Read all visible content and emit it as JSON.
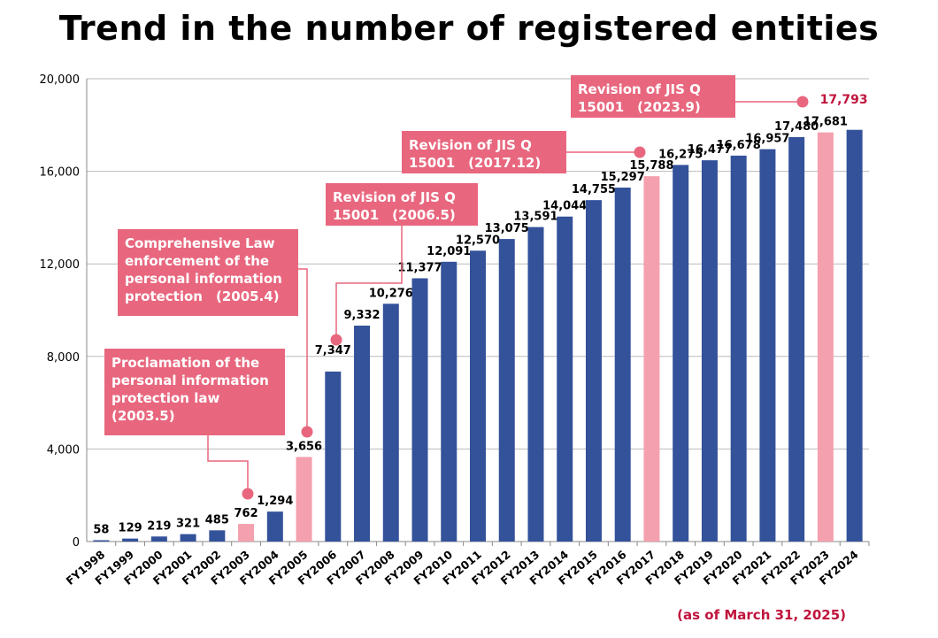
{
  "chart_data": {
    "type": "bar",
    "title": "Trend in the number of registered entities",
    "categories": [
      "FY1998",
      "FY1999",
      "FY2000",
      "FY2001",
      "FY2002",
      "FY2003",
      "FY2004",
      "FY2005",
      "FY2006",
      "FY2007",
      "FY2008",
      "FY2009",
      "FY2010",
      "FY2011",
      "FY2012",
      "FY2013",
      "FY2014",
      "FY2015",
      "FY2016",
      "FY2017",
      "FY2018",
      "FY2019",
      "FY2020",
      "FY2021",
      "FY2022",
      "FY2023",
      "FY2024"
    ],
    "values": [
      58,
      129,
      219,
      321,
      485,
      762,
      1294,
      3656,
      7347,
      9332,
      10276,
      11377,
      12091,
      12570,
      13075,
      13591,
      14044,
      14755,
      15297,
      15788,
      16275,
      16477,
      16678,
      16957,
      17480,
      17681,
      17793
    ],
    "value_labels": [
      "58",
      "129",
      "219",
      "321",
      "485",
      "762",
      "1,294",
      "3,656",
      "7,347",
      "9,332",
      "10,276",
      "11,377",
      "12,091",
      "12,570",
      "13,075",
      "13,591",
      "14,044",
      "14,755",
      "15,297",
      "15,788",
      "16,275",
      "16,477",
      "16,678",
      "16,957",
      "17,480",
      "17,681",
      "17,793"
    ],
    "highlighted": [
      "FY2003",
      "FY2005",
      "FY2017",
      "FY2023"
    ],
    "ylim": [
      0,
      20000
    ],
    "yticks": [
      0,
      4000,
      8000,
      12000,
      16000,
      20000
    ],
    "ytick_labels": [
      "0",
      "4,000",
      "8,000",
      "12,000",
      "16,000",
      "20,000"
    ],
    "xlabel": "",
    "ylabel": "",
    "grid": true,
    "colors": {
      "bar": "#34529a",
      "highlight": "#f4a0ae",
      "annotation": "#e8677e",
      "latest_value": "#c0143c",
      "grid": "#bbbbbb"
    },
    "annotations": [
      {
        "category": "FY2003",
        "text": "Proclamation of the\npersonal information\nprotection law\n  (2003.5)"
      },
      {
        "category": "FY2005",
        "text": "Comprehensive Law\nenforcement of the\npersonal information\nprotection　(2005.4)"
      },
      {
        "category": "FY2006",
        "text": "Revision of JIS Q\n15001　(2006.5)"
      },
      {
        "category": "FY2017",
        "text": "Revision of JIS Q\n15001　(2017.12)"
      },
      {
        "category": "FY2023",
        "text": "Revision of JIS Q\n15001　(2023.9)"
      }
    ],
    "footnote": "(as of March 31, 2025)"
  }
}
